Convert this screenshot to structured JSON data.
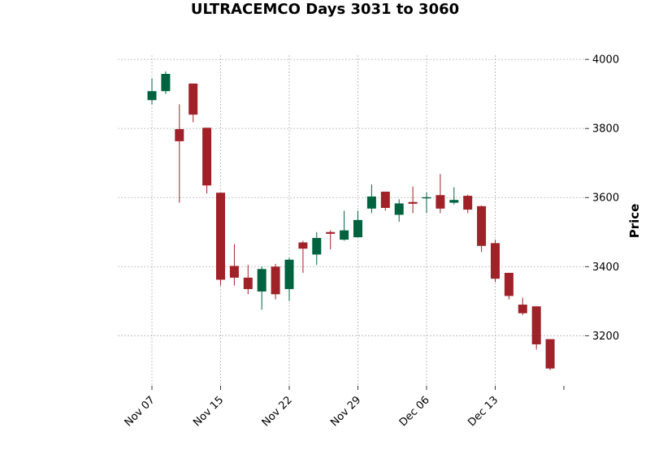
{
  "chart_data": {
    "type": "candlestick",
    "title": "ULTRACEMCO Days 3031 to 3060",
    "xlabel": "",
    "ylabel": "Price",
    "ylim": [
      3055,
      4012
    ],
    "y_ticks": [
      3200,
      3400,
      3600,
      3800,
      4000
    ],
    "y_axis_position": "right",
    "grid": true,
    "x_ticks": [
      {
        "label": "Nov 07",
        "index": 0
      },
      {
        "label": "Nov 15",
        "index": 5
      },
      {
        "label": "Nov 22",
        "index": 10
      },
      {
        "label": "Nov 29",
        "index": 15
      },
      {
        "label": "Dec 06",
        "index": 20
      },
      {
        "label": "Dec 13",
        "index": 25
      },
      {
        "label": "",
        "index": 30
      }
    ],
    "colors": {
      "up": "#006340",
      "down": "#a02128"
    },
    "candles": [
      {
        "open": 3882,
        "high": 3945,
        "low": 3870,
        "close": 3908
      },
      {
        "open": 3908,
        "high": 3965,
        "low": 3900,
        "close": 3958
      },
      {
        "open": 3798,
        "high": 3870,
        "low": 3585,
        "close": 3763
      },
      {
        "open": 3930,
        "high": 3930,
        "low": 3818,
        "close": 3840
      },
      {
        "open": 3802,
        "high": 3802,
        "low": 3612,
        "close": 3635
      },
      {
        "open": 3614,
        "high": 3614,
        "low": 3345,
        "close": 3362
      },
      {
        "open": 3402,
        "high": 3465,
        "low": 3345,
        "close": 3368
      },
      {
        "open": 3368,
        "high": 3405,
        "low": 3320,
        "close": 3335
      },
      {
        "open": 3328,
        "high": 3400,
        "low": 3275,
        "close": 3393
      },
      {
        "open": 3400,
        "high": 3408,
        "low": 3305,
        "close": 3320
      },
      {
        "open": 3335,
        "high": 3425,
        "low": 3300,
        "close": 3420
      },
      {
        "open": 3470,
        "high": 3475,
        "low": 3382,
        "close": 3452
      },
      {
        "open": 3435,
        "high": 3500,
        "low": 3405,
        "close": 3483
      },
      {
        "open": 3500,
        "high": 3505,
        "low": 3450,
        "close": 3495
      },
      {
        "open": 3478,
        "high": 3562,
        "low": 3475,
        "close": 3505
      },
      {
        "open": 3485,
        "high": 3562,
        "low": 3485,
        "close": 3535
      },
      {
        "open": 3568,
        "high": 3638,
        "low": 3555,
        "close": 3603
      },
      {
        "open": 3617,
        "high": 3617,
        "low": 3562,
        "close": 3570
      },
      {
        "open": 3550,
        "high": 3595,
        "low": 3530,
        "close": 3583
      },
      {
        "open": 3587,
        "high": 3632,
        "low": 3555,
        "close": 3582
      },
      {
        "open": 3598,
        "high": 3615,
        "low": 3555,
        "close": 3601
      },
      {
        "open": 3607,
        "high": 3668,
        "low": 3555,
        "close": 3568
      },
      {
        "open": 3585,
        "high": 3630,
        "low": 3580,
        "close": 3593
      },
      {
        "open": 3605,
        "high": 3608,
        "low": 3555,
        "close": 3565
      },
      {
        "open": 3575,
        "high": 3577,
        "low": 3442,
        "close": 3460
      },
      {
        "open": 3468,
        "high": 3478,
        "low": 3355,
        "close": 3365
      },
      {
        "open": 3382,
        "high": 3382,
        "low": 3305,
        "close": 3315
      },
      {
        "open": 3290,
        "high": 3310,
        "low": 3260,
        "close": 3265
      },
      {
        "open": 3285,
        "high": 3285,
        "low": 3160,
        "close": 3175
      },
      {
        "open": 3190,
        "high": 3190,
        "low": 3100,
        "close": 3105
      }
    ]
  }
}
